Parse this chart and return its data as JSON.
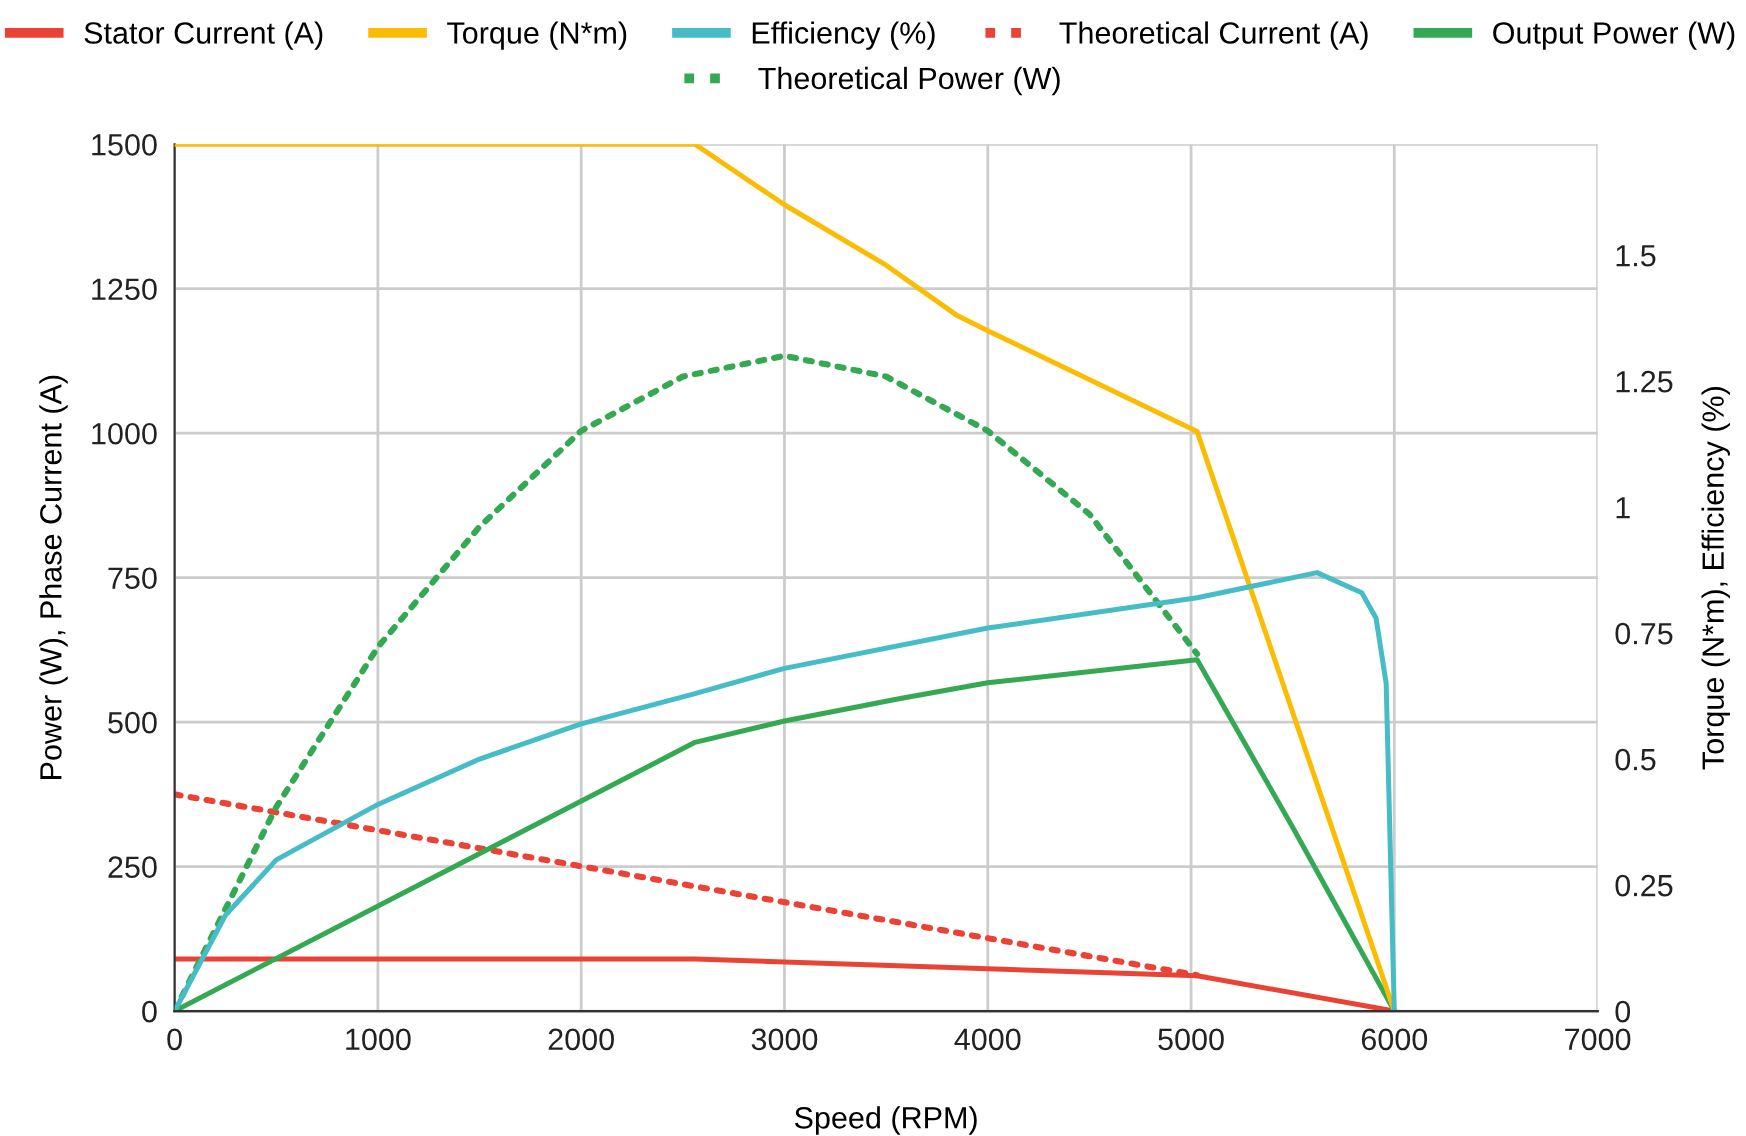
{
  "chart_data": {
    "type": "line",
    "xlabel": "Speed (RPM)",
    "ylabel": "Power (W), Phase Current (A)",
    "y2label": "Torque (N*m), Efficiency (%)",
    "xlim": [
      0,
      7000
    ],
    "xticks": [
      0,
      1000,
      2000,
      3000,
      4000,
      5000,
      6000,
      7000
    ],
    "ylim": [
      0,
      1500
    ],
    "yticks": [
      0,
      250,
      500,
      750,
      1000,
      1250,
      1500
    ],
    "y2lim": [
      0,
      1.72
    ],
    "y2ticks": [
      0,
      0.25,
      0.5,
      0.75,
      1,
      1.25,
      1.5
    ],
    "grid": true,
    "legend": "top",
    "marker": "none",
    "series": [
      {
        "name": "Stator Current (A)",
        "color": "#ea4335",
        "line_style": "solid",
        "x": [
          0,
          2560,
          5030,
          6000
        ],
        "values": [
          90,
          90,
          61,
          0
        ]
      },
      {
        "name": "Torque (N*m)",
        "color": "#fbbc04",
        "line_style": "solid",
        "axis": "y2",
        "x": [
          0,
          2560,
          3000,
          3500,
          3850,
          4000,
          5030,
          6000
        ],
        "values": [
          1.72,
          1.72,
          1.6,
          1.48,
          1.38,
          1.35,
          1.15,
          0
        ]
      },
      {
        "name": "Efficiency (%)",
        "color": "#46bdc6",
        "line_style": "solid",
        "axis": "y2",
        "x": [
          0,
          250,
          500,
          1000,
          1500,
          2000,
          2560,
          3000,
          4000,
          5030,
          5620,
          5840,
          5910,
          5960,
          6000
        ],
        "values": [
          0,
          0.19,
          0.3,
          0.41,
          0.5,
          0.57,
          0.63,
          0.68,
          0.76,
          0.82,
          0.87,
          0.83,
          0.78,
          0.65,
          0
        ]
      },
      {
        "name": "Theoretical Current (A)",
        "color": "#ea4335",
        "line_style": "dotted",
        "x": [
          0,
          5030
        ],
        "values": [
          375,
          62
        ]
      },
      {
        "name": "Output Power (W)",
        "color": "#34a853",
        "line_style": "solid",
        "x": [
          0,
          2560,
          3000,
          3570,
          4000,
          5030,
          5500,
          6000
        ],
        "values": [
          0,
          465,
          502,
          541,
          568,
          608,
          318,
          0
        ]
      },
      {
        "name": "Theoretical Power (W)",
        "color": "#34a853",
        "line_style": "dotted",
        "x": [
          0,
          500,
          1000,
          1500,
          2000,
          2500,
          3000,
          3500,
          4000,
          4500,
          5030
        ],
        "values": [
          0,
          353,
          630,
          838,
          1004,
          1098,
          1134,
          1098,
          1004,
          860,
          618
        ]
      }
    ]
  }
}
